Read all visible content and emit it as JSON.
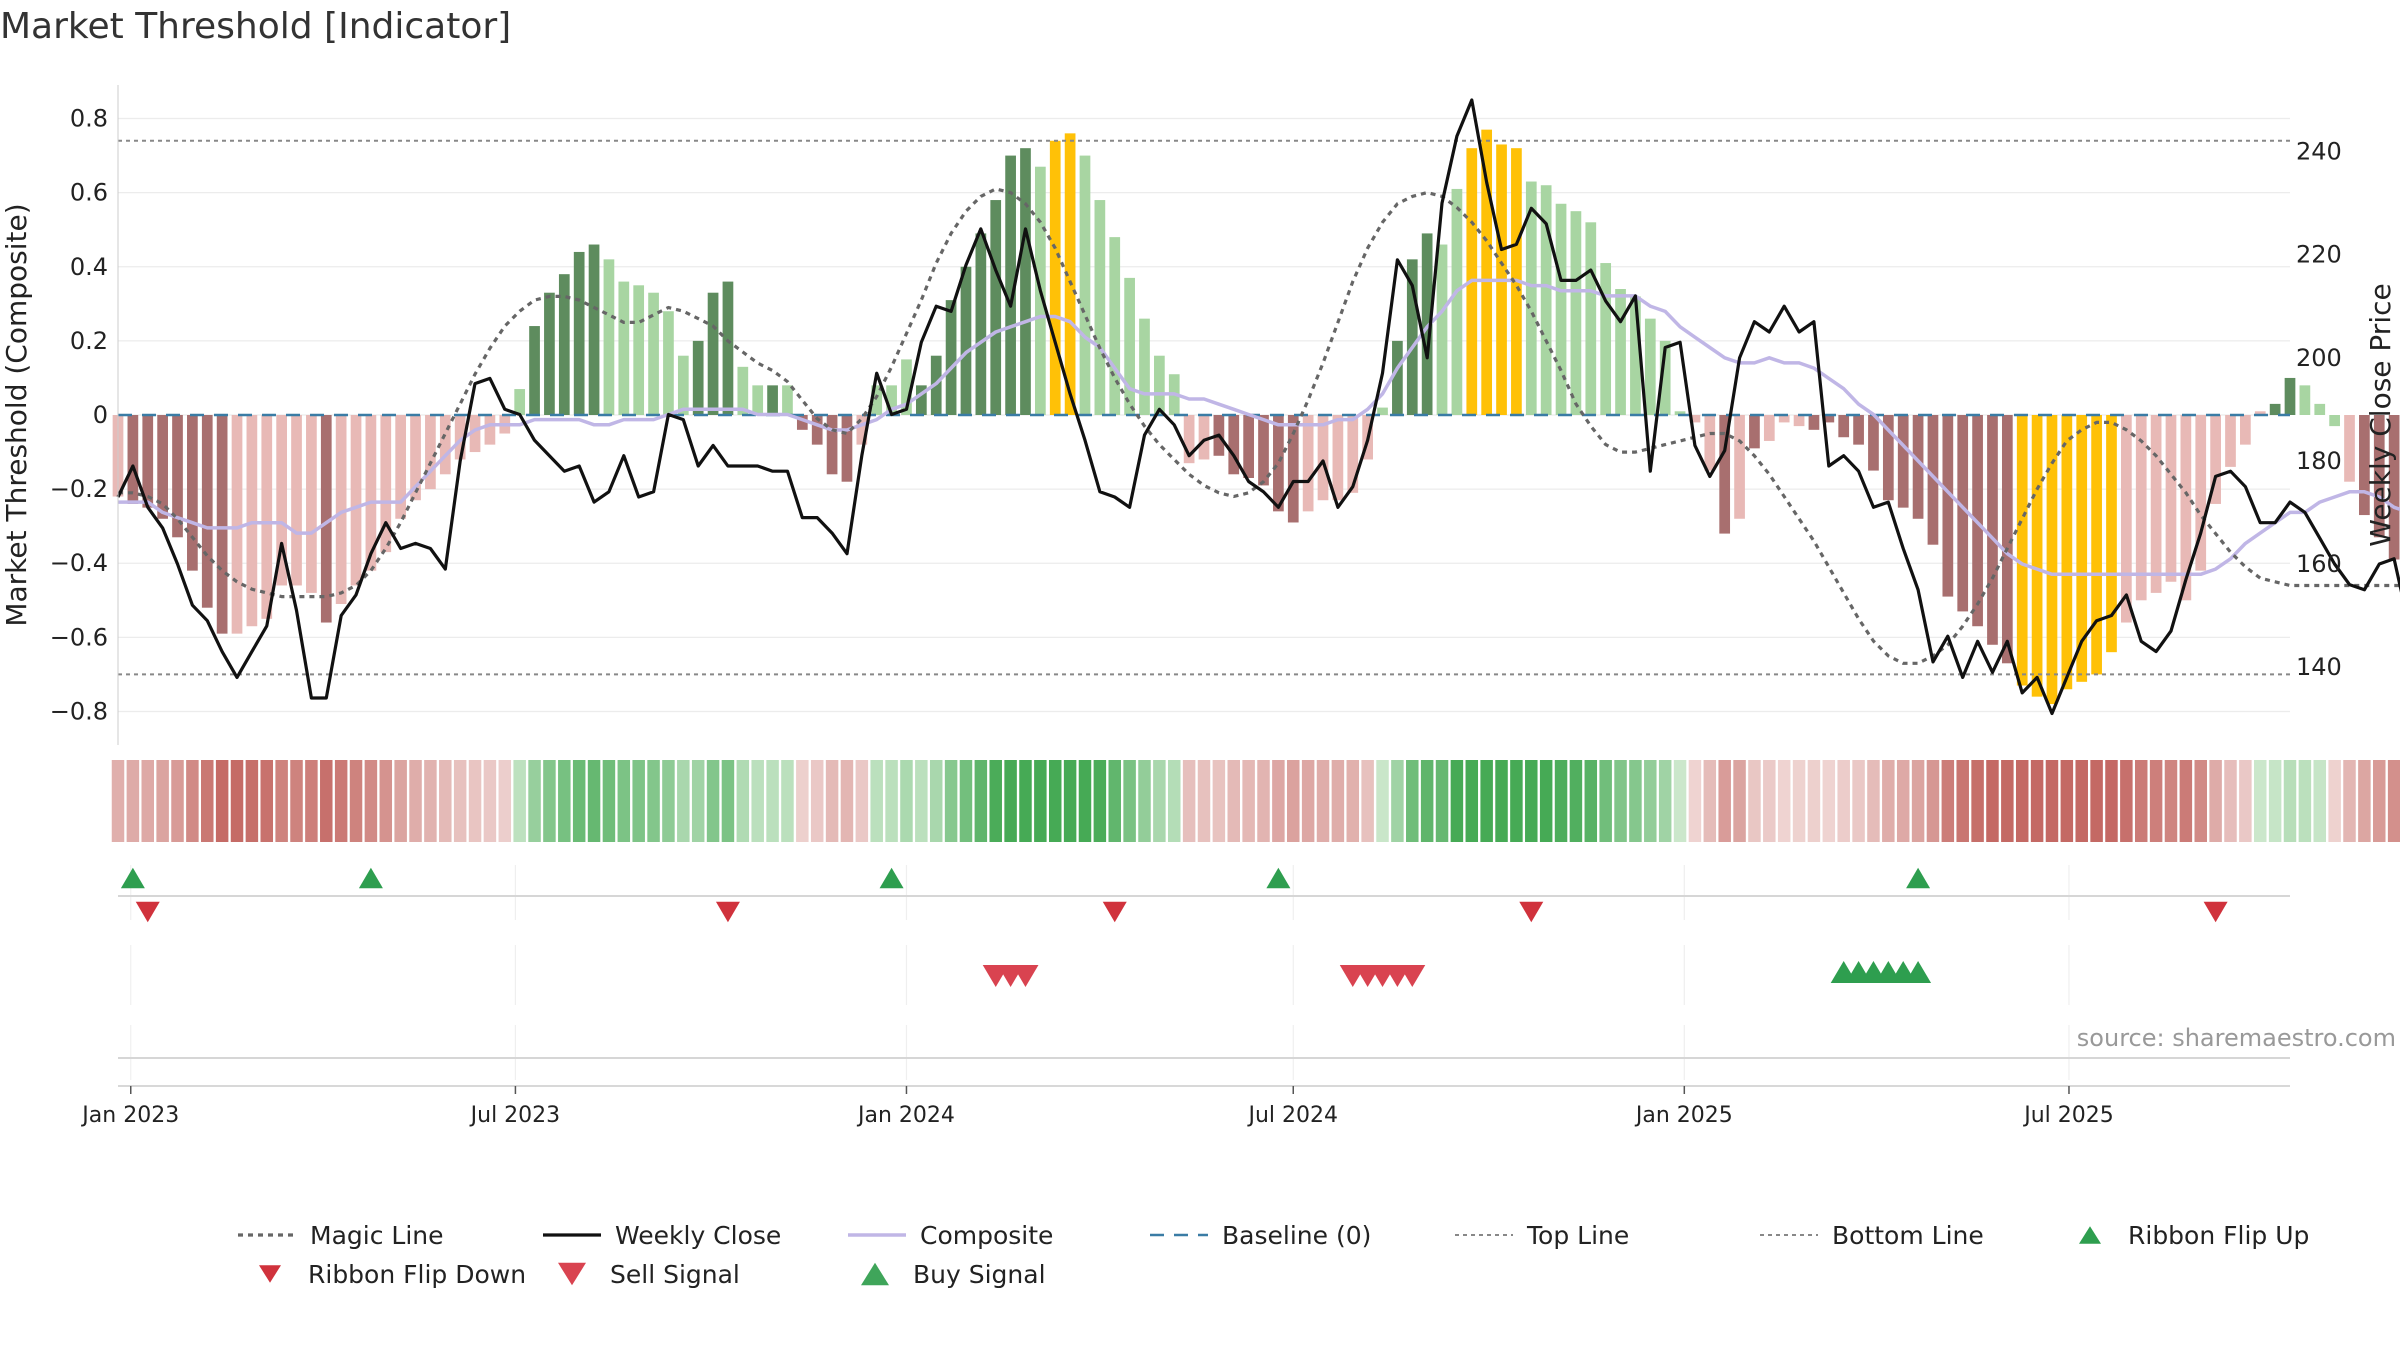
{
  "title": "Market Threshold [Indicator]",
  "source_text": "source: sharemaestro.com",
  "colors": {
    "strong_green": "#5e8c5e",
    "light_green": "#a8d5a2",
    "strong_red": "#a86f6f",
    "light_red": "#e8b9b6",
    "extreme": "#ffc107",
    "magic_line": "#666666",
    "weekly_close": "#111111",
    "composite": "#c0b6e6",
    "baseline": "#3a7ca5",
    "threshold_line": "#888888",
    "buy": "#2e9e4f",
    "sell": "#d94350",
    "grid": "#ececec"
  },
  "chart_data": {
    "type": "bar",
    "title": "Market Threshold [Indicator]",
    "ylabel_left": "Market Threshold (Composite)",
    "ylabel_right": "Weekly Close Price",
    "ylim_left": [
      -0.85,
      0.85
    ],
    "ylim_right": [
      127.8,
      250
    ],
    "yticks_left": [
      "0.8",
      "0.6",
      "0.4",
      "0.2",
      "0",
      "−0.2",
      "−0.4",
      "−0.6",
      "−0.8"
    ],
    "yticks_right": [
      "240",
      "220",
      "200",
      "180",
      "160",
      "140"
    ],
    "x_start": "2022-12-26",
    "x_end": "2025-10-13",
    "xticks": [
      {
        "date": "2023-01-01",
        "label": "Jan 2023"
      },
      {
        "date": "2023-07-01",
        "label": "Jul 2023"
      },
      {
        "date": "2024-01-01",
        "label": "Jan 2024"
      },
      {
        "date": "2024-07-01",
        "label": "Jul 2024"
      },
      {
        "date": "2025-01-01",
        "label": "Jan 2025"
      },
      {
        "date": "2025-07-01",
        "label": "Jul 2025"
      }
    ],
    "top_line": 0.74,
    "bottom_line": -0.7,
    "baseline": 0,
    "grid": true,
    "week_start": "2022-12-26",
    "bars": {
      "values": [
        -0.22,
        -0.24,
        -0.25,
        -0.28,
        -0.33,
        -0.42,
        -0.52,
        -0.59,
        -0.59,
        -0.57,
        -0.55,
        -0.46,
        -0.46,
        -0.48,
        -0.56,
        -0.51,
        -0.46,
        -0.42,
        -0.37,
        -0.28,
        -0.23,
        -0.2,
        -0.16,
        -0.12,
        -0.1,
        -0.08,
        -0.05,
        0.07,
        0.24,
        0.33,
        0.38,
        0.44,
        0.46,
        0.42,
        0.36,
        0.35,
        0.33,
        0.28,
        0.16,
        0.2,
        0.33,
        0.36,
        0.13,
        0.08,
        0.08,
        0.08,
        -0.04,
        -0.08,
        -0.16,
        -0.18,
        -0.08,
        0.08,
        0.08,
        0.15,
        0.08,
        0.16,
        0.31,
        0.4,
        0.49,
        0.58,
        0.7,
        0.72,
        0.67,
        0.74,
        0.76,
        0.7,
        0.58,
        0.48,
        0.37,
        0.26,
        0.16,
        0.11,
        -0.13,
        -0.12,
        -0.11,
        -0.16,
        -0.17,
        -0.19,
        -0.26,
        -0.29,
        -0.26,
        -0.23,
        -0.23,
        -0.21,
        -0.12,
        0.02,
        0.2,
        0.42,
        0.49,
        0.46,
        0.61,
        0.72,
        0.77,
        0.73,
        0.72,
        0.63,
        0.62,
        0.57,
        0.55,
        0.52,
        0.41,
        0.34,
        0.32,
        0.26,
        0.2,
        0.01,
        -0.02,
        -0.15,
        -0.32,
        -0.28,
        -0.09,
        -0.07,
        -0.02,
        -0.03,
        -0.04,
        -0.02,
        -0.06,
        -0.08,
        -0.15,
        -0.23,
        -0.25,
        -0.28,
        -0.35,
        -0.49,
        -0.53,
        -0.57,
        -0.62,
        -0.67,
        -0.73,
        -0.76,
        -0.78,
        -0.74,
        -0.72,
        -0.7,
        -0.64,
        -0.56,
        -0.5,
        -0.48,
        -0.45,
        -0.5,
        -0.42,
        -0.24,
        -0.14,
        -0.08,
        0.01,
        0.03,
        0.1,
        0.08,
        0.03,
        -0.03,
        -0.18,
        -0.27,
        -0.33,
        -0.39,
        -0.44,
        -0.48,
        -0.46,
        -0.47,
        -0.46,
        -0.46
      ],
      "categories": [
        "light_red",
        "strong_red",
        "strong_red",
        "strong_red",
        "strong_red",
        "strong_red",
        "strong_red",
        "strong_red",
        "light_red",
        "light_red",
        "light_red",
        "light_red",
        "light_red",
        "light_red",
        "strong_red",
        "light_red",
        "light_red",
        "light_red",
        "light_red",
        "light_red",
        "light_red",
        "light_red",
        "light_red",
        "light_red",
        "light_red",
        "light_red",
        "light_red",
        "light_green",
        "strong_green",
        "strong_green",
        "strong_green",
        "strong_green",
        "strong_green",
        "light_green",
        "light_green",
        "light_green",
        "light_green",
        "light_green",
        "light_green",
        "strong_green",
        "strong_green",
        "strong_green",
        "light_green",
        "light_green",
        "strong_green",
        "light_green",
        "strong_red",
        "strong_red",
        "strong_red",
        "strong_red",
        "light_red",
        "light_green",
        "light_green",
        "light_green",
        "strong_green",
        "strong_green",
        "strong_green",
        "strong_green",
        "strong_green",
        "strong_green",
        "strong_green",
        "strong_green",
        "light_green",
        "extreme",
        "extreme",
        "light_green",
        "light_green",
        "light_green",
        "light_green",
        "light_green",
        "light_green",
        "light_green",
        "light_red",
        "light_red",
        "strong_red",
        "strong_red",
        "strong_red",
        "strong_red",
        "strong_red",
        "strong_red",
        "light_red",
        "light_red",
        "light_red",
        "light_red",
        "light_red",
        "light_green",
        "strong_green",
        "strong_green",
        "strong_green",
        "light_green",
        "light_green",
        "extreme",
        "extreme",
        "extreme",
        "extreme",
        "light_green",
        "light_green",
        "light_green",
        "light_green",
        "light_green",
        "light_green",
        "light_green",
        "light_green",
        "light_green",
        "light_green",
        "light_green",
        "light_red",
        "light_red",
        "strong_red",
        "light_red",
        "strong_red",
        "light_red",
        "light_red",
        "light_red",
        "strong_red",
        "strong_red",
        "strong_red",
        "strong_red",
        "strong_red",
        "strong_red",
        "strong_red",
        "strong_red",
        "strong_red",
        "strong_red",
        "strong_red",
        "strong_red",
        "strong_red",
        "strong_red",
        "extreme",
        "extreme",
        "extreme",
        "extreme",
        "extreme",
        "extreme",
        "extreme",
        "light_red",
        "light_red",
        "light_red",
        "light_red",
        "light_red",
        "light_red",
        "light_red",
        "light_red",
        "light_red",
        "light_red",
        "strong_green",
        "strong_green",
        "light_green",
        "light_green",
        "light_green",
        "light_red",
        "strong_red",
        "strong_red",
        "strong_red",
        "strong_red",
        "strong_red",
        "light_red",
        "light_red",
        "light_red",
        "light_red"
      ]
    },
    "series": [
      {
        "name": "Weekly Close",
        "axis": "right",
        "values": [
          173,
          179,
          171,
          167,
          160,
          152,
          149,
          143,
          138,
          143,
          148,
          164,
          151,
          134,
          134,
          150,
          154,
          162,
          168,
          163,
          164,
          163,
          159,
          180,
          195,
          196,
          190,
          189,
          184,
          181,
          178,
          179,
          172,
          174,
          181,
          173,
          174,
          189,
          188,
          179,
          183,
          179,
          179,
          179,
          178,
          178,
          169,
          169,
          166,
          162,
          181,
          197,
          189,
          190,
          203,
          210,
          209,
          218,
          225,
          217,
          210,
          225,
          213,
          203,
          193,
          184,
          174,
          173,
          171,
          185,
          190,
          187,
          181,
          184,
          185,
          181,
          176,
          174,
          171,
          176,
          176,
          180,
          171,
          175,
          184,
          197,
          219,
          214,
          200,
          230,
          243,
          250,
          234,
          221,
          222,
          229,
          226,
          215,
          215,
          217,
          211,
          207,
          212,
          178,
          202,
          203,
          183,
          177,
          182,
          200,
          207,
          205,
          210,
          205,
          207,
          179,
          181,
          178,
          171,
          172,
          163,
          155,
          141,
          146,
          138,
          145,
          139,
          145,
          135,
          138,
          131,
          138,
          145,
          149,
          150,
          154,
          145,
          143,
          147,
          157,
          166,
          177,
          178,
          175,
          168,
          168,
          172,
          170,
          165,
          160,
          156,
          155,
          160,
          161,
          148,
          149,
          150,
          157,
          157,
          156,
          157,
          159,
          158,
          159
        ]
      },
      {
        "name": "Composite",
        "axis": "right",
        "values": [
          172,
          172,
          172,
          170,
          169,
          168,
          167,
          167,
          167,
          168,
          168,
          168,
          166,
          166,
          168,
          170,
          171,
          172,
          172,
          172,
          175,
          178,
          181,
          184,
          186,
          187,
          187,
          187,
          188,
          188,
          188,
          188,
          187,
          187,
          188,
          188,
          188,
          189,
          190,
          190,
          190,
          190,
          190,
          189,
          189,
          189,
          188,
          187,
          186,
          186,
          187,
          188,
          190,
          191,
          193,
          195,
          198,
          201,
          203,
          205,
          206,
          207,
          208,
          208,
          207,
          204,
          202,
          198,
          194,
          193,
          193,
          193,
          192,
          192,
          191,
          190,
          189,
          188,
          187,
          187,
          187,
          187,
          188,
          188,
          190,
          193,
          198,
          202,
          206,
          209,
          213,
          215,
          215,
          215,
          215,
          214,
          214,
          213,
          213,
          213,
          212,
          212,
          212,
          210,
          209,
          206,
          204,
          202,
          200,
          199,
          199,
          200,
          199,
          199,
          198,
          196,
          194,
          191,
          189,
          186,
          183,
          180,
          177,
          174,
          171,
          168,
          165,
          162,
          160,
          159,
          158,
          158,
          158,
          158,
          158,
          158,
          158,
          158,
          158,
          158,
          158,
          159,
          161,
          164,
          166,
          168,
          170,
          170,
          172,
          173,
          174,
          174,
          173,
          171,
          170,
          168,
          166,
          165,
          164,
          163,
          162,
          161,
          161,
          160,
          160
        ]
      },
      {
        "name": "Magic Line",
        "axis": "left",
        "values": [
          -0.21,
          -0.21,
          -0.22,
          -0.24,
          -0.28,
          -0.33,
          -0.38,
          -0.42,
          -0.45,
          -0.47,
          -0.48,
          -0.49,
          -0.49,
          -0.49,
          -0.49,
          -0.48,
          -0.46,
          -0.42,
          -0.36,
          -0.29,
          -0.21,
          -0.13,
          -0.05,
          0.03,
          0.11,
          0.18,
          0.24,
          0.28,
          0.31,
          0.32,
          0.32,
          0.31,
          0.29,
          0.27,
          0.25,
          0.25,
          0.27,
          0.29,
          0.28,
          0.26,
          0.24,
          0.2,
          0.17,
          0.14,
          0.12,
          0.09,
          0.04,
          -0.01,
          -0.04,
          -0.05,
          -0.01,
          0.05,
          0.13,
          0.22,
          0.31,
          0.41,
          0.49,
          0.55,
          0.59,
          0.61,
          0.6,
          0.57,
          0.52,
          0.45,
          0.36,
          0.27,
          0.18,
          0.1,
          0.03,
          -0.03,
          -0.08,
          -0.12,
          -0.16,
          -0.19,
          -0.21,
          -0.22,
          -0.21,
          -0.18,
          -0.13,
          -0.05,
          0.04,
          0.14,
          0.25,
          0.36,
          0.45,
          0.52,
          0.57,
          0.59,
          0.6,
          0.59,
          0.56,
          0.52,
          0.47,
          0.41,
          0.35,
          0.28,
          0.2,
          0.12,
          0.03,
          -0.03,
          -0.08,
          -0.1,
          -0.1,
          -0.09,
          -0.08,
          -0.07,
          -0.06,
          -0.05,
          -0.05,
          -0.07,
          -0.11,
          -0.16,
          -0.22,
          -0.28,
          -0.34,
          -0.41,
          -0.48,
          -0.55,
          -0.61,
          -0.65,
          -0.67,
          -0.67,
          -0.65,
          -0.62,
          -0.57,
          -0.51,
          -0.44,
          -0.36,
          -0.28,
          -0.2,
          -0.13,
          -0.07,
          -0.04,
          -0.02,
          -0.02,
          -0.04,
          -0.07,
          -0.11,
          -0.16,
          -0.21,
          -0.27,
          -0.32,
          -0.37,
          -0.41,
          -0.44,
          -0.45,
          -0.46,
          -0.46,
          -0.46,
          -0.46,
          -0.46,
          -0.46,
          -0.46,
          -0.46,
          -0.46,
          -0.46,
          -0.46,
          -0.46,
          -0.46,
          -0.46,
          -0.46,
          -0.46
        ]
      }
    ],
    "ribbon_flip_up_dates": [
      "2023-01-02",
      "2023-04-24",
      "2023-12-25",
      "2024-06-24",
      "2025-04-21"
    ],
    "ribbon_flip_down_dates": [
      "2023-01-09",
      "2023-10-09",
      "2024-04-08",
      "2024-10-21",
      "2025-09-08"
    ],
    "sell_signal_dates": [
      "2024-02-12",
      "2024-02-19",
      "2024-02-26",
      "2024-07-29",
      "2024-08-05",
      "2024-08-12",
      "2024-08-19",
      "2024-08-26"
    ],
    "buy_signal_dates": [
      "2025-03-17",
      "2025-03-24",
      "2025-03-31",
      "2025-04-07",
      "2025-04-14",
      "2025-04-21"
    ]
  },
  "legend": [
    {
      "label": "Magic Line",
      "icon": "dotted-line"
    },
    {
      "label": "Weekly Close",
      "icon": "solid-line"
    },
    {
      "label": "Composite",
      "icon": "lavender-line"
    },
    {
      "label": "Baseline (0)",
      "icon": "dashed-line"
    },
    {
      "label": "Top Line",
      "icon": "dotted-line"
    },
    {
      "label": "Bottom Line",
      "icon": "dotted-line"
    },
    {
      "label": "Ribbon Flip Up",
      "icon": "triangle-up-icon"
    },
    {
      "label": "Ribbon Flip Down",
      "icon": "triangle-down-icon"
    },
    {
      "label": "Sell Signal",
      "icon": "triangle-down-icon"
    },
    {
      "label": "Buy Signal",
      "icon": "triangle-up-icon"
    }
  ]
}
